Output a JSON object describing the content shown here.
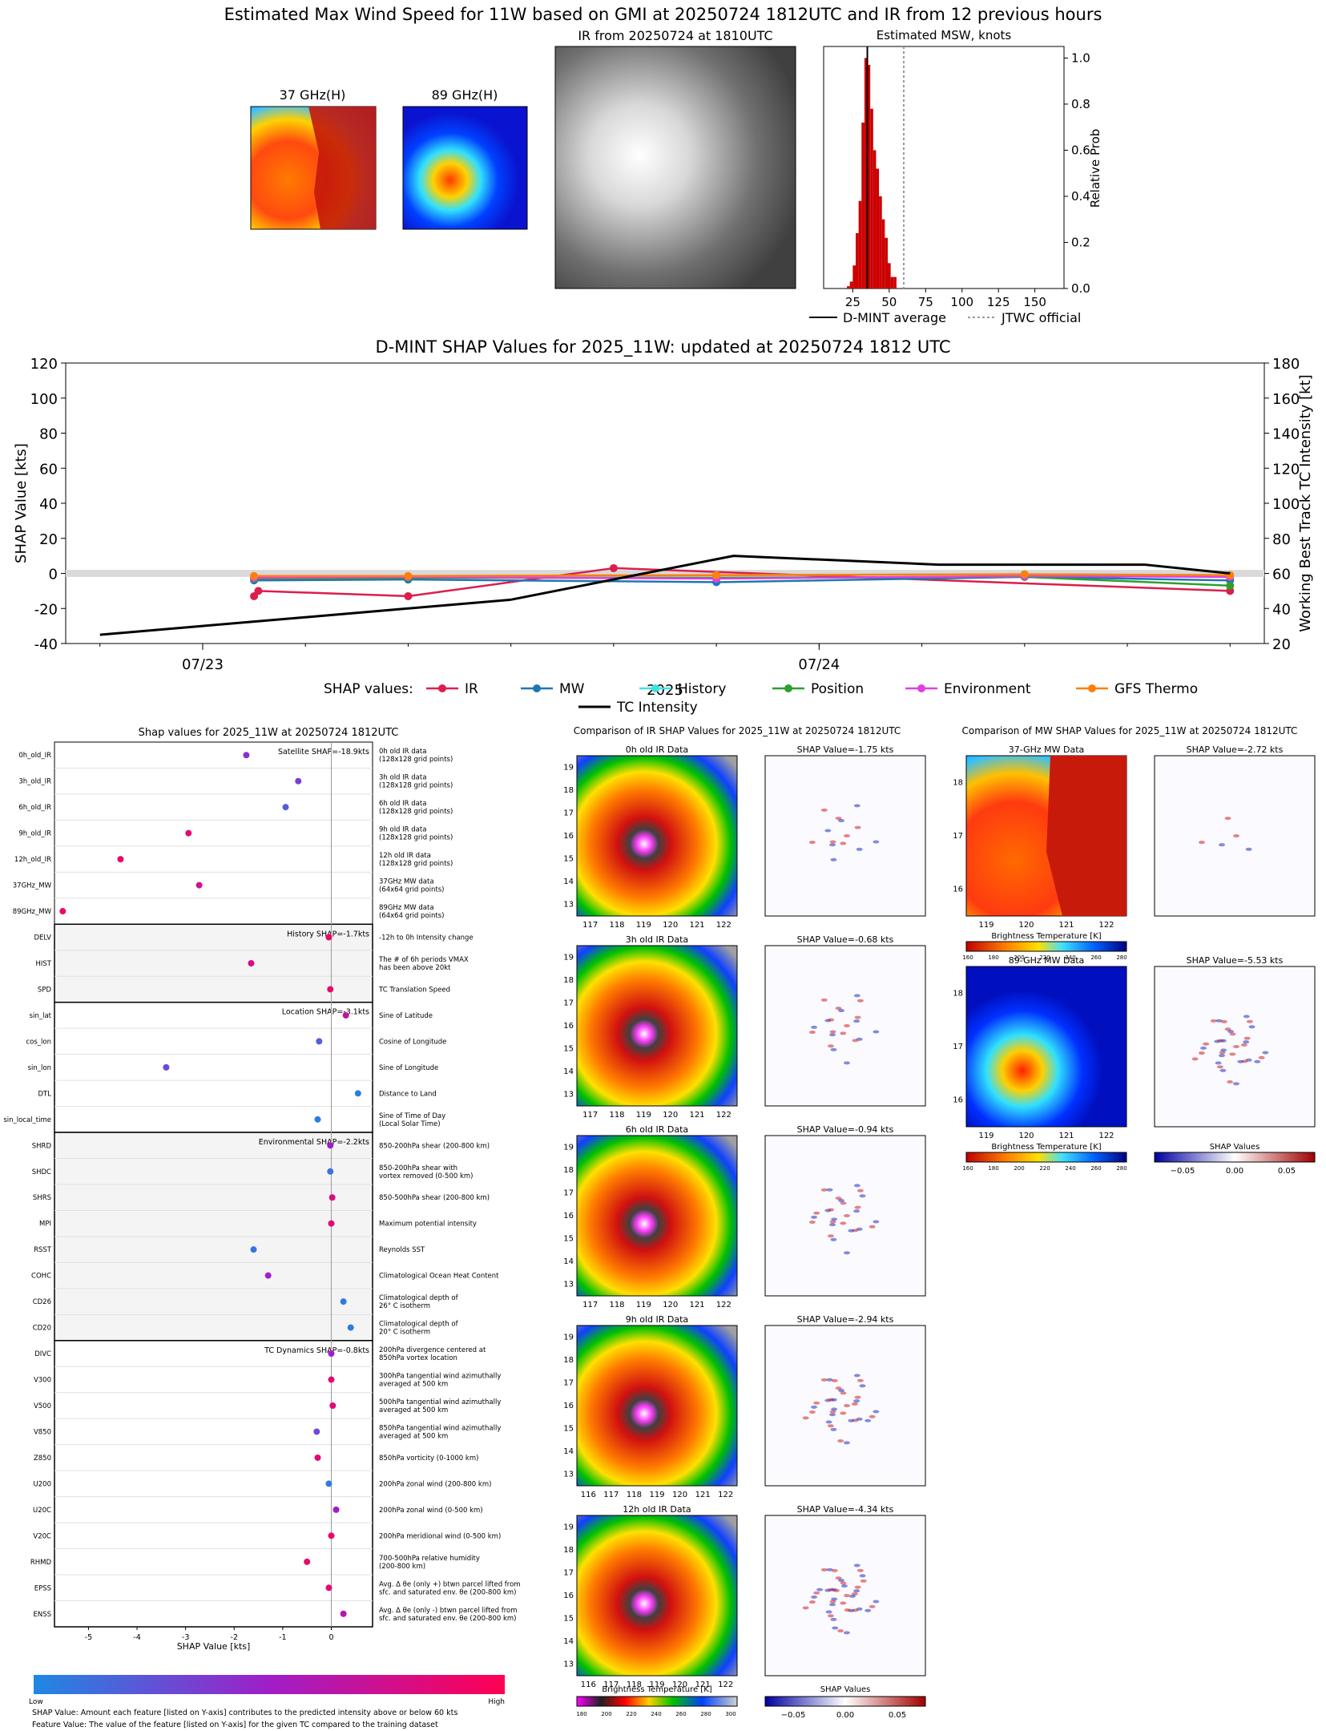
{
  "top": {
    "title": "Estimated Max Wind Speed for 11W based on GMI at 20250724 1812UTC and IR from 12 previous hours",
    "mw37_title": "37 GHz(H)",
    "mw89_title": "89 GHz(H)",
    "ir_title": "IR from 20250724 at 1810UTC",
    "hist": {
      "title": "Estimated MSW, knots",
      "ylabel": "Relative Prob",
      "xticks": [
        "25",
        "50",
        "75",
        "100",
        "125",
        "150"
      ],
      "yticks": [
        "0.0",
        "0.2",
        "0.4",
        "0.6",
        "0.8",
        "1.0"
      ],
      "legend_avg": "D-MINT average",
      "legend_jtwc": "JTWC official",
      "avg_kt": 35,
      "jtwc_kt": 60,
      "bins_kt": [
        22,
        24,
        26,
        28,
        30,
        32,
        34,
        36,
        38,
        40,
        42,
        44,
        46,
        48,
        50,
        52,
        54
      ],
      "bins_prob": [
        0.01,
        0.03,
        0.1,
        0.24,
        0.38,
        0.72,
        1.0,
        0.97,
        0.78,
        0.6,
        0.52,
        0.4,
        0.3,
        0.22,
        0.11,
        0.05,
        0.05
      ]
    }
  },
  "shap_ts": {
    "title": "D-MINT SHAP Values for 2025_11W: updated at 20250724 1812 UTC",
    "ylabel_left": "SHAP Value [kts]",
    "ylabel_right": "Working Best Track TC Intensity [kt]",
    "xlabel": "2025",
    "xticks": [
      "07/23",
      "07/24"
    ],
    "yticks_left": [
      "-40",
      "-20",
      "0",
      "20",
      "40",
      "60",
      "80",
      "100",
      "120"
    ],
    "yticks_right": [
      "20",
      "40",
      "60",
      "80",
      "100",
      "120",
      "140",
      "160",
      "180"
    ],
    "legend_label": "SHAP values:",
    "legend": [
      {
        "name": "IR",
        "color": "#dc1e4c"
      },
      {
        "name": "MW",
        "color": "#1f77b4"
      },
      {
        "name": "History",
        "color": "#40e0e0"
      },
      {
        "name": "Position",
        "color": "#2ca02c"
      },
      {
        "name": "Environment",
        "color": "#e040e0"
      },
      {
        "name": "GFS Thermo",
        "color": "#ff7f0e"
      },
      {
        "name": "TC Intensity",
        "color": "#000000"
      }
    ]
  },
  "chart_data": [
    {
      "type": "bar",
      "title": "Estimated MSW, knots",
      "ylabel": "Relative Prob",
      "x": [
        22,
        24,
        26,
        28,
        30,
        32,
        34,
        36,
        38,
        40,
        42,
        44,
        46,
        48,
        50,
        52,
        54
      ],
      "values": [
        0.01,
        0.03,
        0.1,
        0.24,
        0.38,
        0.72,
        1.0,
        0.97,
        0.78,
        0.6,
        0.52,
        0.4,
        0.3,
        0.22,
        0.11,
        0.05,
        0.05
      ],
      "xlim": [
        5,
        170
      ],
      "ylim": [
        0,
        1.05
      ],
      "vlines": [
        {
          "name": "D-MINT average",
          "x": 35
        },
        {
          "name": "JTWC official",
          "x": 60
        }
      ]
    },
    {
      "type": "line",
      "title": "D-MINT SHAP Values for 2025_11W: updated at 20250724 1812 UTC",
      "xlabel": "2025",
      "ylabel": "SHAP Value [kts]",
      "ylabel_right": "Working Best Track TC Intensity [kt]",
      "x_hours_since_0722": [
        33,
        33.5,
        42,
        54,
        60,
        72,
        78,
        90
      ],
      "series": [
        {
          "name": "IR",
          "x": [
            33,
            33.25,
            42,
            54,
            90
          ],
          "values": [
            -13,
            -10,
            -13,
            3,
            -10
          ]
        },
        {
          "name": "MW",
          "x": [
            33,
            42,
            60,
            78,
            90
          ],
          "values": [
            -4,
            -3.5,
            -5,
            -2,
            -4
          ]
        },
        {
          "name": "History",
          "x": [
            33,
            42,
            60,
            78,
            90
          ],
          "values": [
            -2,
            -1.5,
            -1,
            -0.5,
            -1
          ]
        },
        {
          "name": "Position",
          "x": [
            33,
            42,
            60,
            78,
            90
          ],
          "values": [
            -3,
            -2.5,
            -2.5,
            -2,
            -7
          ]
        },
        {
          "name": "Environment",
          "x": [
            33,
            42,
            60,
            78,
            90
          ],
          "values": [
            -2.5,
            -2,
            -3,
            -1.5,
            -2
          ]
        },
        {
          "name": "GFS Thermo",
          "x": [
            33,
            42,
            60,
            78,
            90
          ],
          "values": [
            -1.5,
            -1.5,
            -1,
            -0.5,
            -1
          ]
        },
        {
          "name": "TC Intensity",
          "x": [
            24,
            30,
            48,
            61,
            73,
            85,
            90
          ],
          "values": [
            25,
            30,
            45,
            70,
            65,
            65,
            60
          ]
        }
      ],
      "ylim_left": [
        -40,
        120
      ],
      "ylim_right": [
        20,
        180
      ]
    },
    {
      "type": "scatter",
      "title": "Shap values for 2025_11W at 20250724 1812UTC",
      "xlabel": "SHAP Value [kts]",
      "xlim": [
        -5.7,
        0.85
      ],
      "features": [
        "0h_old_IR",
        "3h_old_IR",
        "6h_old_IR",
        "9h_old_IR",
        "12h_old_IR",
        "37GHz_MW",
        "89GHz_MW",
        "DELV",
        "HIST",
        "SPD",
        "sin_lat",
        "cos_lon",
        "sin_lon",
        "DTL",
        "sin_local_time",
        "SHRD",
        "SHDC",
        "SHRS",
        "MPI",
        "RSST",
        "COHC",
        "CD26",
        "CD20",
        "DIVC",
        "V300",
        "V500",
        "V850",
        "Z850",
        "U200",
        "U20C",
        "V20C",
        "RHMD",
        "EPSS",
        "ENSS"
      ],
      "values": [
        -1.75,
        -0.68,
        -0.94,
        -2.94,
        -4.34,
        -2.72,
        -5.53,
        -0.05,
        -1.65,
        -0.02,
        0.3,
        -0.25,
        -3.4,
        0.55,
        -0.28,
        -0.02,
        -0.02,
        0.02,
        0.0,
        -1.6,
        -1.3,
        0.25,
        0.4,
        0.0,
        0.0,
        0.03,
        -0.3,
        -0.28,
        -0.05,
        0.1,
        0.0,
        -0.5,
        -0.05,
        0.25
      ],
      "feature_levels": [
        0.4,
        0.35,
        0.2,
        0.85,
        0.9,
        0.75,
        0.92,
        0.9,
        0.8,
        0.9,
        0.7,
        0.2,
        0.3,
        0.05,
        0.05,
        0.5,
        0.1,
        0.8,
        0.85,
        0.1,
        0.5,
        0.05,
        0.05,
        0.5,
        0.85,
        0.85,
        0.3,
        0.85,
        0.05,
        0.5,
        0.9,
        0.9,
        0.85,
        0.6
      ]
    }
  ],
  "shap_features": {
    "title": "Shap values for 2025_11W at 20250724 1812UTC",
    "xlabel": "SHAP Value [kts]",
    "xticks": [
      "-5",
      "-4",
      "-3",
      "-2",
      "-1",
      "0"
    ],
    "groups": [
      {
        "label": "Satellite SHAP=-18.9kts",
        "rows": [
          {
            "name": "0h_old_IR",
            "desc1": "0h old IR data",
            "desc2": "(128x128 grid points)"
          },
          {
            "name": "3h_old_IR",
            "desc1": "3h old IR data",
            "desc2": "(128x128 grid points)"
          },
          {
            "name": "6h_old_IR",
            "desc1": "6h old IR data",
            "desc2": "(128x128 grid points)"
          },
          {
            "name": "9h_old_IR",
            "desc1": "9h old IR data",
            "desc2": "(128x128 grid points)"
          },
          {
            "name": "12h_old_IR",
            "desc1": "12h old IR data",
            "desc2": "(128x128 grid points)"
          },
          {
            "name": "37GHz_MW",
            "desc1": "37GHz MW data",
            "desc2": "(64x64 grid points)"
          },
          {
            "name": "89GHz_MW",
            "desc1": "89GHz MW data",
            "desc2": "(64x64 grid points)"
          }
        ]
      },
      {
        "label": "History SHAP=-1.7kts",
        "rows": [
          {
            "name": "DELV",
            "desc1": "-12h to 0h Intensity change",
            "desc2": ""
          },
          {
            "name": "HIST",
            "desc1": "The # of 6h periods VMAX",
            "desc2": "has been above 20kt"
          },
          {
            "name": "SPD",
            "desc1": "TC Translation Speed",
            "desc2": ""
          }
        ]
      },
      {
        "label": "Location SHAP=-3.1kts",
        "rows": [
          {
            "name": "sin_lat",
            "desc1": "Sine of Latitude",
            "desc2": ""
          },
          {
            "name": "cos_lon",
            "desc1": "Cosine of Longitude",
            "desc2": ""
          },
          {
            "name": "sin_lon",
            "desc1": "Sine of Longitude",
            "desc2": ""
          },
          {
            "name": "DTL",
            "desc1": "Distance to Land",
            "desc2": ""
          },
          {
            "name": "sin_local_time",
            "desc1": "Sine of Time of Day",
            "desc2": "(Local Solar Time)"
          }
        ]
      },
      {
        "label": "Environmental SHAP=-2.2kts",
        "rows": [
          {
            "name": "SHRD",
            "desc1": "850-200hPa shear (200-800 km)",
            "desc2": ""
          },
          {
            "name": "SHDC",
            "desc1": "850-200hPa shear with",
            "desc2": "vortex removed (0-500 km)"
          },
          {
            "name": "SHRS",
            "desc1": "850-500hPa shear (200-800 km)",
            "desc2": ""
          },
          {
            "name": "MPI",
            "desc1": "Maximum potential intensity",
            "desc2": ""
          },
          {
            "name": "RSST",
            "desc1": "Reynolds SST",
            "desc2": ""
          },
          {
            "name": "COHC",
            "desc1": "Climatological Ocean Heat Content",
            "desc2": ""
          },
          {
            "name": "CD26",
            "desc1": "Climatological depth of",
            "desc2": "26° C isotherm"
          },
          {
            "name": "CD20",
            "desc1": "Climatological depth of",
            "desc2": "20° C isotherm"
          }
        ]
      },
      {
        "label": "TC Dynamics SHAP=-0.8kts",
        "rows": [
          {
            "name": "DIVC",
            "desc1": "200hPa divergence centered at",
            "desc2": "850hPa vortex location"
          },
          {
            "name": "V300",
            "desc1": "300hPa tangential wind azimuthally",
            "desc2": "averaged at 500 km"
          },
          {
            "name": "V500",
            "desc1": "500hPa tangential wind azimuthally",
            "desc2": "averaged at 500 km"
          },
          {
            "name": "V850",
            "desc1": "850hPa tangential wind azimuthally",
            "desc2": "averaged at 500 km"
          },
          {
            "name": "Z850",
            "desc1": "850hPa vorticity (0-1000 km)",
            "desc2": ""
          },
          {
            "name": "U200",
            "desc1": "200hPa zonal wind (200-800 km)",
            "desc2": ""
          },
          {
            "name": "U20C",
            "desc1": "200hPa zonal wind (0-500 km)",
            "desc2": ""
          },
          {
            "name": "V20C",
            "desc1": "200hPa meridional wind (0-500 km)",
            "desc2": ""
          },
          {
            "name": "RHMD",
            "desc1": "700-500hPa relative humidity",
            "desc2": "(200-800 km)"
          },
          {
            "name": "EPSS",
            "desc1": "Avg. Δ θe (only +) btwn parcel lifted from",
            "desc2": "sfc. and saturated env. θe (200-800 km)"
          },
          {
            "name": "ENSS",
            "desc1": "Avg. Δ θe (only -) btwn parcel lifted from",
            "desc2": "sfc. and saturated env. θe (200-800 km)"
          }
        ]
      }
    ],
    "colorbar_low": "Low",
    "colorbar_high": "High",
    "footnote1": "SHAP Value: Amount each feature [listed on Y-axis] contributes to the predicted intensity above or below 60 kts",
    "footnote2": "Feature Value: The value of the feature [listed on Y-axis] for the given TC compared to the training dataset"
  },
  "ir_compare": {
    "title": "Comparison of IR SHAP Values for 2025_11W at 20250724 1812UTC",
    "panels": [
      {
        "label": "0h old IR Data",
        "shap": "SHAP Value=-1.75 kts"
      },
      {
        "label": "3h old IR Data",
        "shap": "SHAP Value=-0.68 kts"
      },
      {
        "label": "6h old IR Data",
        "shap": "SHAP Value=-0.94 kts"
      },
      {
        "label": "9h old IR Data",
        "shap": "SHAP Value=-2.94 kts"
      },
      {
        "label": "12h old IR Data",
        "shap": "SHAP Value=-4.34 kts"
      }
    ],
    "yticks": [
      "19",
      "18",
      "17",
      "16",
      "15",
      "14",
      "13"
    ],
    "xticks": [
      "117",
      "118",
      "119",
      "120",
      "121",
      "122"
    ],
    "xticks_wide": [
      "116",
      "117",
      "118",
      "119",
      "120",
      "121",
      "122"
    ],
    "cbar_bt_label": "Brightness Temperature [K]",
    "cbar_bt_ticks": [
      "180",
      "200",
      "220",
      "240",
      "260",
      "280",
      "300"
    ],
    "cbar_shap_label": "SHAP Values",
    "cbar_shap_ticks": [
      "−0.05",
      "0.00",
      "0.05"
    ]
  },
  "mw_compare": {
    "title": "Comparison of MW SHAP Values for 2025_11W at 20250724 1812UTC",
    "panels": [
      {
        "label": "37-GHz MW Data",
        "shap": "SHAP Value=-2.72 kts"
      },
      {
        "label": "89-GHz MW Data",
        "shap": "SHAP Value=-5.53 kts"
      }
    ],
    "yticks": [
      "18",
      "17",
      "16"
    ],
    "xticks": [
      "119",
      "120",
      "121",
      "122"
    ],
    "cbar_bt_label": "Brightness Temperature [K]",
    "cbar_bt_ticks": [
      "160",
      "180",
      "200",
      "220",
      "240",
      "260",
      "280"
    ],
    "cbar_shap_label": "SHAP Values",
    "cbar_shap_ticks": [
      "−0.05",
      "0.00",
      "0.05"
    ]
  }
}
